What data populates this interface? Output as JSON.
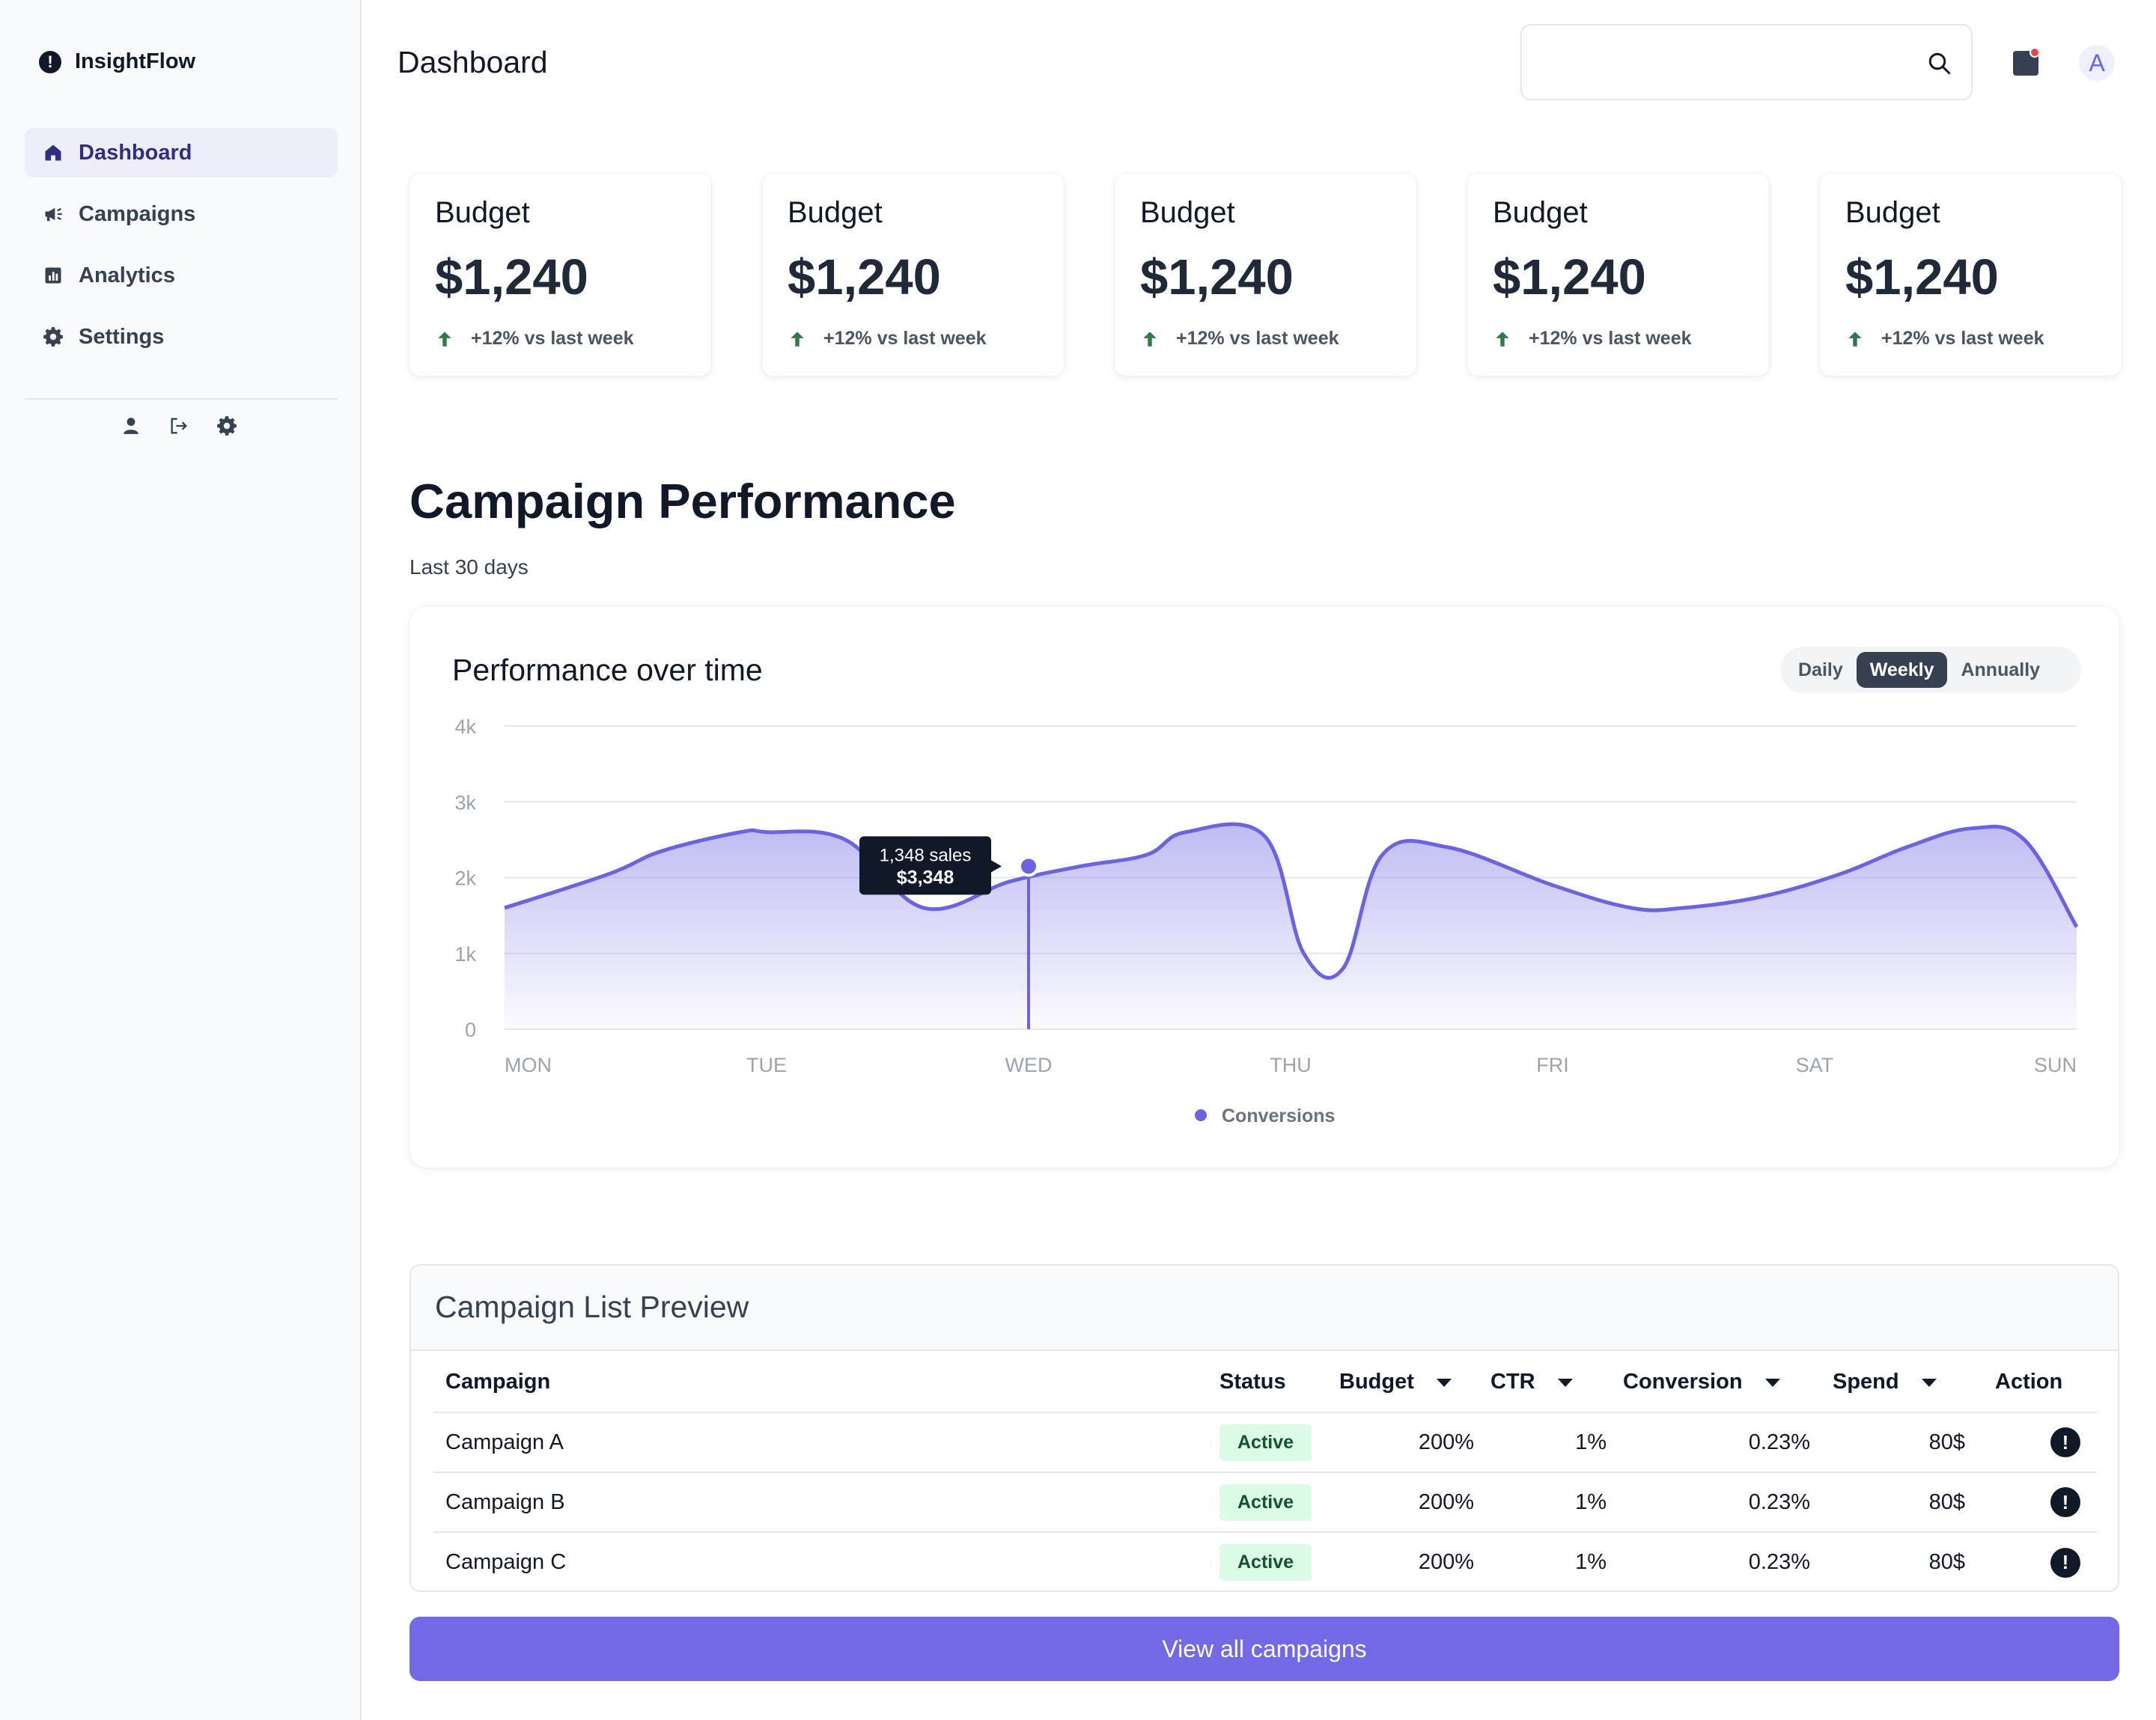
{
  "app": {
    "name": "InsightFlow"
  },
  "sidebar": {
    "items": [
      {
        "label": "Dashboard",
        "icon": "home-icon",
        "active": true
      },
      {
        "label": "Campaigns",
        "icon": "megaphone-icon",
        "active": false
      },
      {
        "label": "Analytics",
        "icon": "chart-icon",
        "active": false
      },
      {
        "label": "Settings",
        "icon": "gear-icon",
        "active": false
      }
    ],
    "footer_icons": [
      "user-icon",
      "logout-icon",
      "gear-icon"
    ]
  },
  "header": {
    "title": "Dashboard",
    "search": {
      "placeholder": "",
      "value": ""
    },
    "avatar_initial": "A"
  },
  "kpis": [
    {
      "label": "Budget",
      "value": "$1,240",
      "delta": "+12% vs last week"
    },
    {
      "label": "Budget",
      "value": "$1,240",
      "delta": "+12% vs last week"
    },
    {
      "label": "Budget",
      "value": "$1,240",
      "delta": "+12% vs last week"
    },
    {
      "label": "Budget",
      "value": "$1,240",
      "delta": "+12% vs last week"
    },
    {
      "label": "Budget",
      "value": "$1,240",
      "delta": "+12% vs last week"
    }
  ],
  "performance": {
    "title": "Campaign Performance",
    "subtitle": "Last 30 days",
    "card_title": "Performance over time",
    "ranges": [
      "Daily",
      "Weekly",
      "Annually"
    ],
    "selected_range": "Weekly",
    "tooltip": {
      "line1": "1,348 sales",
      "line2": "$3,348"
    }
  },
  "chart_data": {
    "type": "area",
    "title": "Performance over time",
    "categories": [
      "MON",
      "TUE",
      "WED",
      "THU",
      "FRI",
      "SAT",
      "SUN"
    ],
    "x": [
      0,
      0.4,
      0.6,
      0.9,
      1.0,
      1.3,
      1.6,
      1.93,
      2.2,
      2.45,
      2.6,
      2.9,
      3.05,
      3.2,
      3.35,
      3.6,
      4.0,
      4.3,
      4.5,
      4.8,
      5.1,
      5.35,
      5.6,
      5.8,
      6.0
    ],
    "series": [
      {
        "name": "Conversions",
        "color": "#6b63e0",
        "values": [
          1600,
          2050,
          2350,
          2600,
          2600,
          2500,
          1600,
          1950,
          2150,
          2300,
          2600,
          2550,
          1000,
          800,
          2300,
          2400,
          1900,
          1600,
          1600,
          1750,
          2050,
          2400,
          2650,
          2500,
          1350
        ]
      }
    ],
    "ylim": [
      0,
      4000
    ],
    "yticks": [
      "0",
      "1k",
      "2k",
      "3k",
      "4k"
    ],
    "legend": "bottom-center",
    "grid": true,
    "highlight": {
      "category": "WED",
      "label1": "1,348 sales",
      "label2": "$3,348"
    }
  },
  "campaigns": {
    "title": "Campaign List Preview",
    "columns": [
      "Campaign",
      "Status",
      "Budget",
      "CTR",
      "Conversion",
      "Spend",
      "Action"
    ],
    "rows": [
      {
        "name": "Campaign A",
        "status": "Active",
        "budget": "200%",
        "ctr": "1%",
        "conversion": "0.23%",
        "spend": "80$"
      },
      {
        "name": "Campaign B",
        "status": "Active",
        "budget": "200%",
        "ctr": "1%",
        "conversion": "0.23%",
        "spend": "80$"
      },
      {
        "name": "Campaign C",
        "status": "Active",
        "budget": "200%",
        "ctr": "1%",
        "conversion": "0.23%",
        "spend": "80$"
      }
    ],
    "cta": "View all campaigns"
  },
  "colors": {
    "accent": "#6b63e0",
    "button": "#7169e6",
    "success": "#2f7a4a",
    "badge_bg": "#dcfce7"
  }
}
